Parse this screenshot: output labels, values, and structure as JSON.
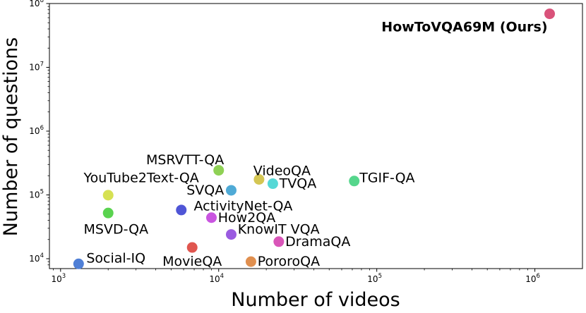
{
  "chart_data": {
    "type": "scatter",
    "title": "",
    "xlabel": "Number of videos",
    "ylabel": "Number of questions",
    "xscale": "log",
    "yscale": "log",
    "xlim": [
      850,
      2000000
    ],
    "ylim": [
      7000,
      100000000
    ],
    "grid": false,
    "x_ticks": [
      {
        "value": 1000,
        "base": "10",
        "exp": "3"
      },
      {
        "value": 10000,
        "base": "10",
        "exp": "4"
      },
      {
        "value": 100000,
        "base": "10",
        "exp": "5"
      },
      {
        "value": 1000000,
        "base": "10",
        "exp": "6"
      }
    ],
    "y_ticks": [
      {
        "value": 10000,
        "base": "10",
        "exp": "4"
      },
      {
        "value": 100000,
        "base": "10",
        "exp": "5"
      },
      {
        "value": 1000000,
        "base": "10",
        "exp": "6"
      },
      {
        "value": 10000000,
        "base": "10",
        "exp": "7"
      },
      {
        "value": 100000000,
        "base": "10",
        "exp": "8"
      }
    ],
    "points": [
      {
        "label": "HowToVQA69M (Ours)",
        "x": 1240000,
        "y": 69000000,
        "color": "#d9527a",
        "bold": true,
        "dx": 0.97,
        "dy": 1.0,
        "anchor": "end",
        "ly": 0.62
      },
      {
        "label": "TGIF-QA",
        "x": 72000,
        "y": 165000,
        "color": "#55d68c",
        "dx": 1.08,
        "dy": 1.0,
        "anchor": "start",
        "ly": 1.12
      },
      {
        "label": "MSRVTT-QA",
        "x": 10000,
        "y": 243000,
        "color": "#8fd155",
        "dx": 1.08,
        "dy": 1.0,
        "anchor": "end",
        "ly": 1.45
      },
      {
        "label": "VideoQA",
        "x": 18000,
        "y": 175000,
        "color": "#d4c653",
        "dx": 0.92,
        "dy": 1.0,
        "anchor": "start",
        "ly": 1.35
      },
      {
        "label": "TVQA",
        "x": 22000,
        "y": 150000,
        "color": "#55d8d6",
        "dx": 1.1,
        "dy": 1.0,
        "anchor": "start",
        "ly": 1.0
      },
      {
        "label": "SVQA",
        "x": 12000,
        "y": 118000,
        "color": "#4faad6",
        "dx": 0.9,
        "dy": 1.0,
        "anchor": "end",
        "ly": 1.0
      },
      {
        "label": "YouTube2Text-QA",
        "x": 2000,
        "y": 99000,
        "color": "#d6e153",
        "dx": 0.7,
        "dy": 1.0,
        "anchor": "start",
        "ly": 1.85
      },
      {
        "label": "MSVD-QA",
        "x": 2000,
        "y": 52000,
        "color": "#5ad34f",
        "dx": 0.7,
        "dy": 1.0,
        "anchor": "start",
        "ly": 0.55
      },
      {
        "label": "ActivityNet-QA",
        "x": 5800,
        "y": 58000,
        "color": "#4f55d6",
        "dx": 1.2,
        "dy": 1.0,
        "anchor": "start",
        "ly": 1.15
      },
      {
        "label": "How2QA",
        "x": 9000,
        "y": 44000,
        "color": "#c955e0",
        "dx": 1.1,
        "dy": 1.0,
        "anchor": "start",
        "ly": 1.0
      },
      {
        "label": "KnowIT VQA",
        "x": 12000,
        "y": 24000,
        "color": "#9a5be0",
        "dx": 1.1,
        "dy": 1.0,
        "anchor": "start",
        "ly": 1.2
      },
      {
        "label": "DramaQA",
        "x": 24000,
        "y": 18500,
        "color": "#d955b8",
        "dx": 1.1,
        "dy": 1.0,
        "anchor": "start",
        "ly": 1.0
      },
      {
        "label": "MovieQA",
        "x": 6800,
        "y": 15000,
        "color": "#e0564f",
        "dx": 1.0,
        "dy": 1.0,
        "anchor": "middle",
        "ly": 0.6
      },
      {
        "label": "PororoQA",
        "x": 16000,
        "y": 9000,
        "color": "#e08f4f",
        "dx": 1.1,
        "dy": 1.0,
        "anchor": "start",
        "ly": 1.0
      },
      {
        "label": "Social-IQ",
        "x": 1300,
        "y": 8300,
        "color": "#4f7fd6",
        "dx": 1.12,
        "dy": 1.0,
        "anchor": "start",
        "ly": 1.22
      }
    ]
  }
}
